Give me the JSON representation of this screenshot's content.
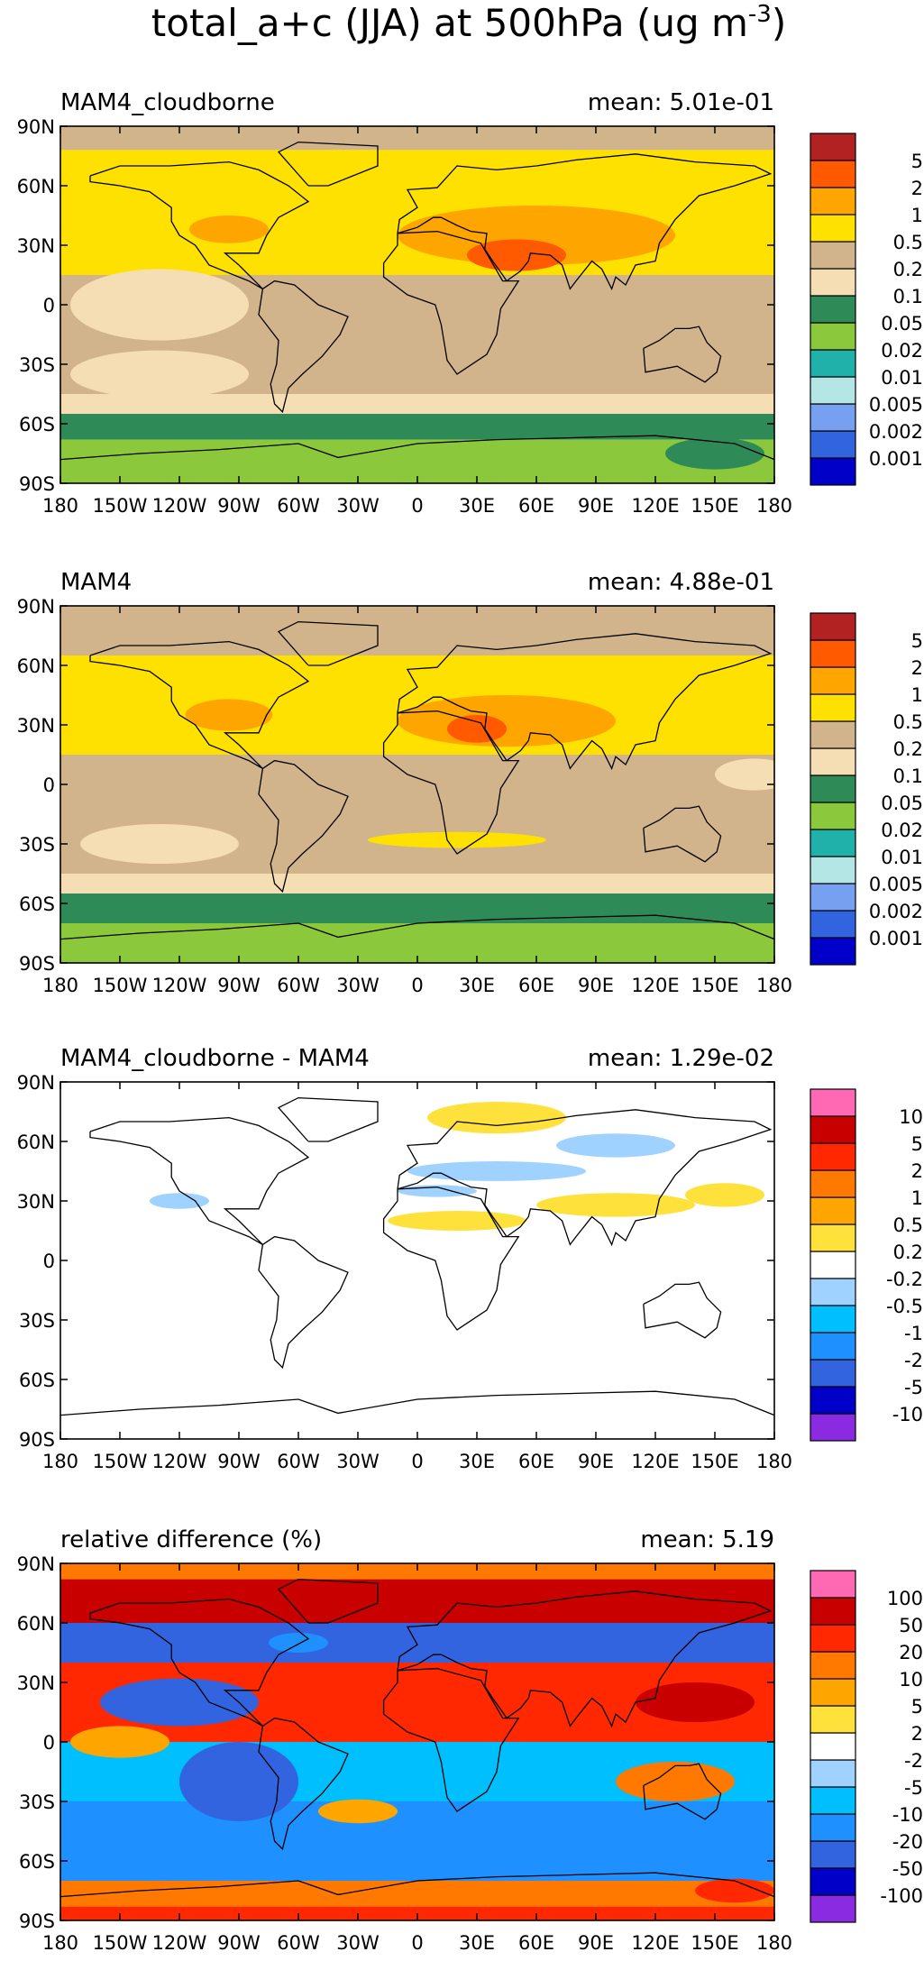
{
  "title": "total_a+c (JJA) at 500hPa (ug m",
  "title_superscript": "-3",
  "title_close": ")",
  "lat_labels": [
    "90N",
    "60N",
    "30N",
    "0",
    "30S",
    "60S",
    "90S"
  ],
  "lon_labels": [
    "180",
    "150W",
    "120W",
    "90W",
    "60W",
    "30W",
    "0",
    "30E",
    "60E",
    "90E",
    "120E",
    "150E",
    "180"
  ],
  "panels": [
    {
      "label": "MAM4_cloudborne",
      "mean": "mean: 5.01e-01",
      "colorbar": {
        "colors": [
          "#0000c8",
          "#3264e0",
          "#78a0f0",
          "#b4e6e6",
          "#20b2aa",
          "#8cc83c",
          "#2e8b57",
          "#f5deb3",
          "#d2b48c",
          "#ffe100",
          "#ffa500",
          "#ff5a00",
          "#b22222"
        ],
        "labels": [
          "0.001",
          "0.002",
          "0.005",
          "0.01",
          "0.02",
          "0.05",
          "0.1",
          "0.2",
          "0.5",
          "1",
          "2",
          "5"
        ]
      },
      "bands": [
        {
          "lat_from": 90,
          "lat_to": 78,
          "color": "#d2b48c"
        },
        {
          "lat_from": 78,
          "lat_to": 55,
          "color": "#ffe100"
        },
        {
          "lat_from": 55,
          "lat_to": 15,
          "color": "#ffe100"
        },
        {
          "lat_from": 15,
          "lat_to": 5,
          "color": "#d2b48c"
        },
        {
          "lat_from": 5,
          "lat_to": -45,
          "color": "#d2b48c"
        },
        {
          "lat_from": -45,
          "lat_to": -55,
          "color": "#f5deb3"
        },
        {
          "lat_from": -55,
          "lat_to": -68,
          "color": "#2e8b57"
        },
        {
          "lat_from": -68,
          "lat_to": -90,
          "color": "#8cc83c"
        }
      ],
      "blobs": [
        {
          "lon": 60,
          "lat": 35,
          "rlon": 70,
          "rlat": 15,
          "color": "#ffa500"
        },
        {
          "lon": 50,
          "lat": 25,
          "rlon": 25,
          "rlat": 8,
          "color": "#ff5a00"
        },
        {
          "lon": -95,
          "lat": 38,
          "rlon": 20,
          "rlat": 7,
          "color": "#ffa500"
        },
        {
          "lon": -130,
          "lat": 0,
          "rlon": 45,
          "rlat": 18,
          "color": "#f5deb3"
        },
        {
          "lon": -130,
          "lat": -35,
          "rlon": 45,
          "rlat": 12,
          "color": "#f5deb3"
        },
        {
          "lon": 150,
          "lat": -75,
          "rlon": 25,
          "rlat": 8,
          "color": "#2e8b57"
        }
      ]
    },
    {
      "label": "MAM4",
      "mean": "mean: 4.88e-01",
      "colorbar": {
        "colors": [
          "#0000c8",
          "#3264e0",
          "#78a0f0",
          "#b4e6e6",
          "#20b2aa",
          "#8cc83c",
          "#2e8b57",
          "#f5deb3",
          "#d2b48c",
          "#ffe100",
          "#ffa500",
          "#ff5a00",
          "#b22222"
        ],
        "labels": [
          "0.001",
          "0.002",
          "0.005",
          "0.01",
          "0.02",
          "0.05",
          "0.1",
          "0.2",
          "0.5",
          "1",
          "2",
          "5"
        ]
      },
      "bands": [
        {
          "lat_from": 90,
          "lat_to": 65,
          "color": "#d2b48c"
        },
        {
          "lat_from": 65,
          "lat_to": 15,
          "color": "#ffe100"
        },
        {
          "lat_from": 15,
          "lat_to": -45,
          "color": "#d2b48c"
        },
        {
          "lat_from": -45,
          "lat_to": -55,
          "color": "#f5deb3"
        },
        {
          "lat_from": -55,
          "lat_to": -70,
          "color": "#2e8b57"
        },
        {
          "lat_from": -70,
          "lat_to": -90,
          "color": "#8cc83c"
        }
      ],
      "blobs": [
        {
          "lon": 45,
          "lat": 32,
          "rlon": 55,
          "rlat": 13,
          "color": "#ffa500"
        },
        {
          "lon": -95,
          "lat": 35,
          "rlon": 22,
          "rlat": 8,
          "color": "#ffa500"
        },
        {
          "lon": 30,
          "lat": 28,
          "rlon": 15,
          "rlat": 7,
          "color": "#ff5a00"
        },
        {
          "lon": -130,
          "lat": -30,
          "rlon": 40,
          "rlat": 10,
          "color": "#f5deb3"
        },
        {
          "lon": 170,
          "lat": 5,
          "rlon": 20,
          "rlat": 8,
          "color": "#f5deb3"
        },
        {
          "lon": 20,
          "lat": -28,
          "rlon": 45,
          "rlat": 4,
          "color": "#ffe100"
        }
      ]
    },
    {
      "label": "MAM4_cloudborne - MAM4",
      "mean": "mean: 1.29e-02",
      "colorbar": {
        "colors": [
          "#8a2be2",
          "#0000c8",
          "#3264e0",
          "#1e90ff",
          "#00bfff",
          "#a0d2ff",
          "#ffffff",
          "#ffe13c",
          "#ffa500",
          "#ff7800",
          "#ff2800",
          "#c80000",
          "#ff69b4"
        ],
        "labels": [
          "-10",
          "-5",
          "-2",
          "-1",
          "-0.5",
          "-0.2",
          "0.2",
          "0.5",
          "1",
          "2",
          "5",
          "10"
        ]
      },
      "bands": [],
      "blobs": [
        {
          "lon": 40,
          "lat": 72,
          "rlon": 35,
          "rlat": 8,
          "color": "#ffe13c"
        },
        {
          "lon": 40,
          "lat": 45,
          "rlon": 45,
          "rlat": 5,
          "color": "#a0d2ff"
        },
        {
          "lon": 100,
          "lat": 58,
          "rlon": 30,
          "rlat": 6,
          "color": "#a0d2ff"
        },
        {
          "lon": -120,
          "lat": 30,
          "rlon": 15,
          "rlat": 4,
          "color": "#a0d2ff"
        },
        {
          "lon": 20,
          "lat": 20,
          "rlon": 35,
          "rlat": 5,
          "color": "#ffe13c"
        },
        {
          "lon": 100,
          "lat": 28,
          "rlon": 40,
          "rlat": 6,
          "color": "#ffe13c"
        },
        {
          "lon": 155,
          "lat": 33,
          "rlon": 20,
          "rlat": 6,
          "color": "#ffe13c"
        },
        {
          "lon": 10,
          "lat": 35,
          "rlon": 20,
          "rlat": 3,
          "color": "#a0d2ff"
        }
      ]
    },
    {
      "label": "relative difference (%)",
      "mean": "mean:  5.19",
      "colorbar": {
        "colors": [
          "#8a2be2",
          "#0000c8",
          "#3264e0",
          "#1e90ff",
          "#00bfff",
          "#a0d2ff",
          "#ffffff",
          "#ffe13c",
          "#ffa500",
          "#ff7800",
          "#ff2800",
          "#c80000",
          "#ff69b4"
        ],
        "labels": [
          "-100",
          "-50",
          "-20",
          "-10",
          "-5",
          "-2",
          "2",
          "5",
          "10",
          "20",
          "50",
          "100"
        ]
      },
      "bands": [
        {
          "lat_from": 90,
          "lat_to": 82,
          "color": "#ff7800"
        },
        {
          "lat_from": 82,
          "lat_to": 60,
          "color": "#c80000"
        },
        {
          "lat_from": 60,
          "lat_to": 40,
          "color": "#3264e0"
        },
        {
          "lat_from": 40,
          "lat_to": 0,
          "color": "#ff2800"
        },
        {
          "lat_from": 0,
          "lat_to": -30,
          "color": "#00bfff"
        },
        {
          "lat_from": -30,
          "lat_to": -70,
          "color": "#1e90ff"
        },
        {
          "lat_from": -70,
          "lat_to": -83,
          "color": "#ff7800"
        },
        {
          "lat_from": -83,
          "lat_to": -90,
          "color": "#ff2800"
        }
      ],
      "blobs": [
        {
          "lon": -120,
          "lat": 20,
          "rlon": 40,
          "rlat": 12,
          "color": "#3264e0"
        },
        {
          "lon": -90,
          "lat": -20,
          "rlon": 30,
          "rlat": 20,
          "color": "#3264e0"
        },
        {
          "lon": 130,
          "lat": -20,
          "rlon": 30,
          "rlat": 10,
          "color": "#ff7800"
        },
        {
          "lon": -30,
          "lat": -35,
          "rlon": 20,
          "rlat": 6,
          "color": "#ffa500"
        },
        {
          "lon": 140,
          "lat": 20,
          "rlon": 30,
          "rlat": 10,
          "color": "#c80000"
        },
        {
          "lon": -150,
          "lat": 0,
          "rlon": 25,
          "rlat": 8,
          "color": "#ffa500"
        },
        {
          "lon": 160,
          "lat": -75,
          "rlon": 20,
          "rlat": 6,
          "color": "#ff2800"
        },
        {
          "lon": -60,
          "lat": 50,
          "rlon": 15,
          "rlat": 5,
          "color": "#1e90ff"
        }
      ]
    }
  ]
}
